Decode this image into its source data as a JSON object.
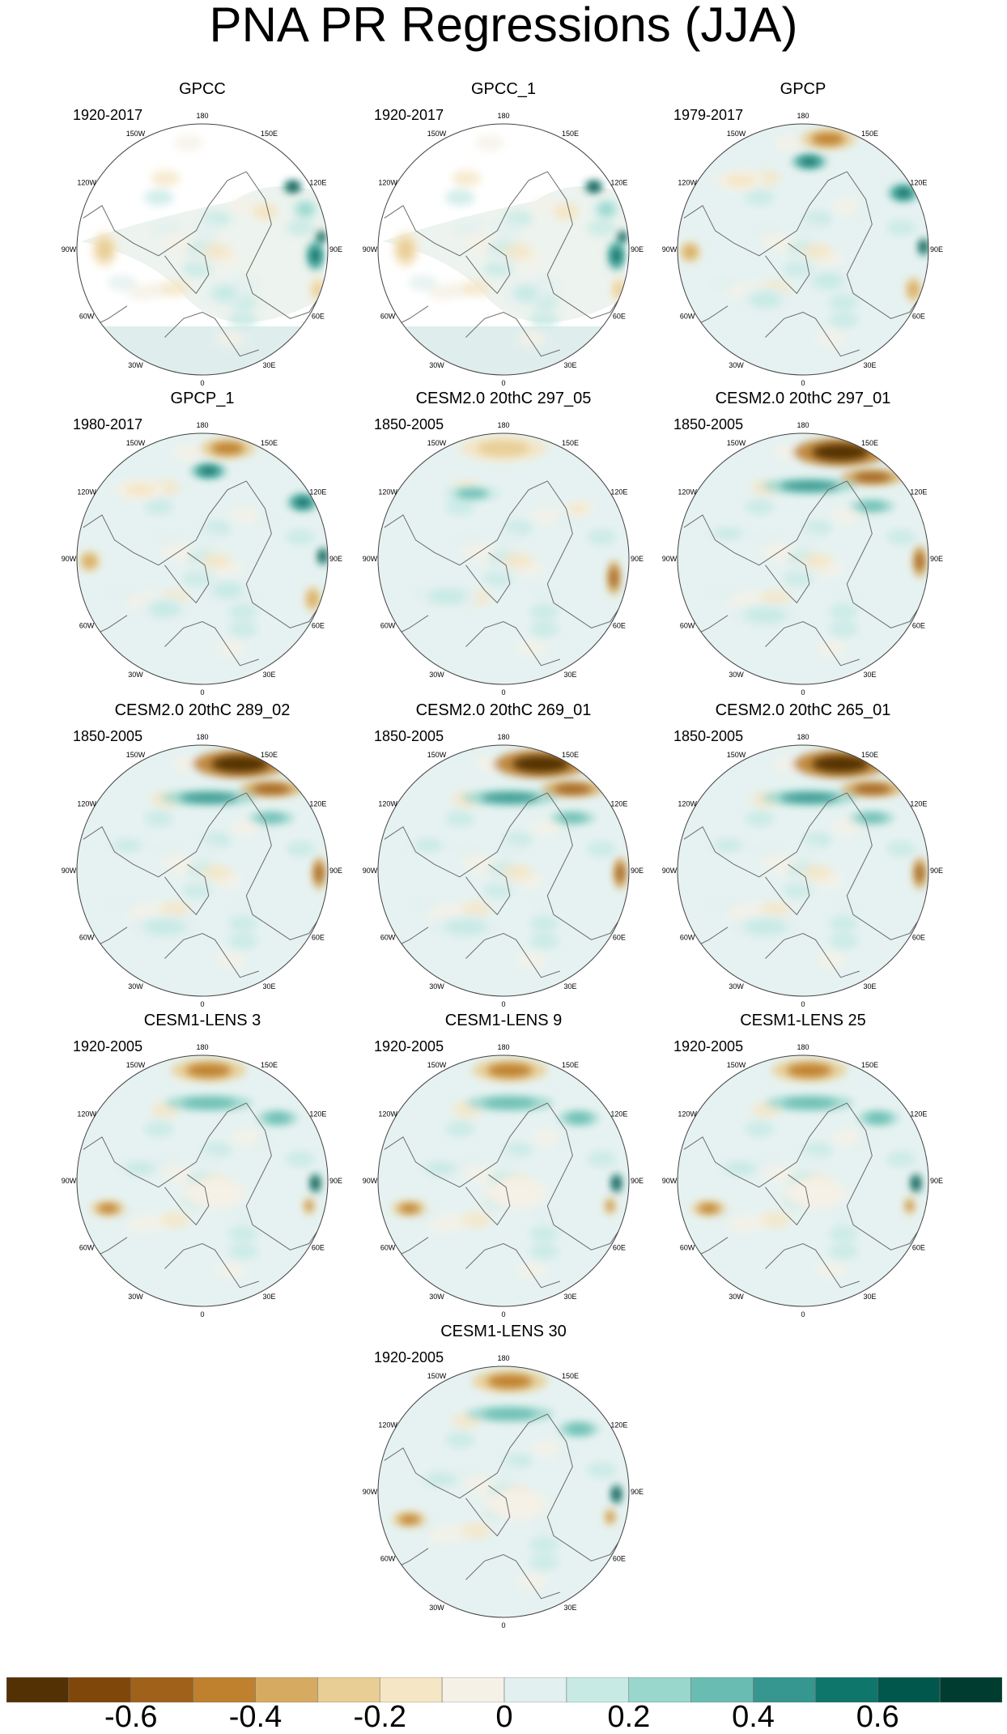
{
  "title": "PNA PR Regressions (JJA)",
  "panels": [
    {
      "name": "GPCC",
      "period": "1920-2017",
      "pattern": "gpcc"
    },
    {
      "name": "GPCC_1",
      "period": "1920-2017",
      "pattern": "gpcc"
    },
    {
      "name": "GPCP",
      "period": "1979-2017",
      "pattern": "gpcp"
    },
    {
      "name": "GPCP_1",
      "period": "1980-2017",
      "pattern": "gpcp"
    },
    {
      "name": "CESM2.0 20thC 297_05",
      "period": "1850-2005",
      "pattern": "model_weak"
    },
    {
      "name": "CESM2.0 20thC 297_01",
      "period": "1850-2005",
      "pattern": "model_strong"
    },
    {
      "name": "CESM2.0 20thC 289_02",
      "period": "1850-2005",
      "pattern": "model_strong"
    },
    {
      "name": "CESM2.0 20thC 269_01",
      "period": "1850-2005",
      "pattern": "model_strong"
    },
    {
      "name": "CESM2.0 20thC 265_01",
      "period": "1850-2005",
      "pattern": "model_strong"
    },
    {
      "name": "CESM1-LENS 3",
      "period": "1920-2005",
      "pattern": "lens"
    },
    {
      "name": "CESM1-LENS 9",
      "period": "1920-2005",
      "pattern": "lens"
    },
    {
      "name": "CESM1-LENS 25",
      "period": "1920-2005",
      "pattern": "lens"
    },
    {
      "name": "CESM1-LENS 30",
      "period": "1920-2005",
      "pattern": "lens"
    }
  ],
  "lon_labels": [
    "180",
    "150E",
    "120E",
    "90E",
    "60E",
    "30E",
    "0",
    "30W",
    "60W",
    "90W",
    "120W",
    "150W"
  ],
  "colorbar": {
    "colors": [
      "#543005",
      "#7f470a",
      "#a0611a",
      "#bf812d",
      "#d6ab61",
      "#e8ce95",
      "#f5e6c5",
      "#f5f1e7",
      "#e2f0ef",
      "#c7eae5",
      "#99d6cc",
      "#69bcb2",
      "#35978f",
      "#0f766c",
      "#01574c",
      "#003c30"
    ],
    "tick_labels": [
      "-0.6",
      "-0.4",
      "-0.2",
      "0",
      "0.2",
      "0.4",
      "0.6"
    ],
    "tick_values": [
      -0.6,
      -0.4,
      -0.2,
      0,
      0.2,
      0.4,
      0.6
    ],
    "min": -0.8,
    "max": 0.8
  }
}
